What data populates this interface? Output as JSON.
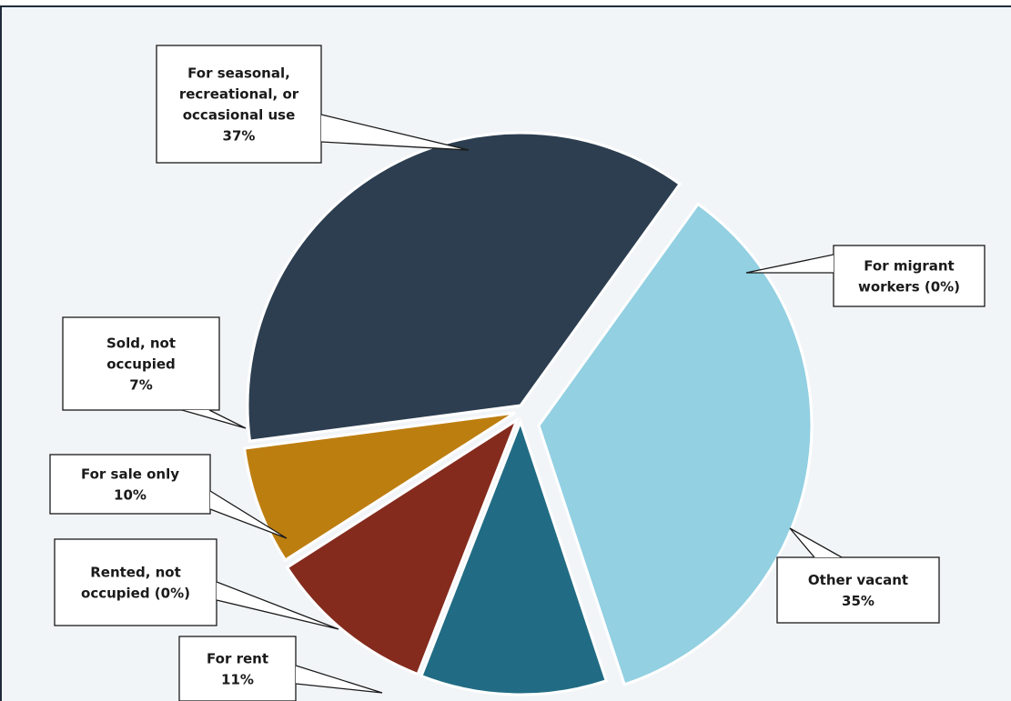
{
  "chart_data": {
    "type": "pie",
    "title": "",
    "slices": [
      {
        "label": "For seasonal, recreational, or occasional use",
        "value": 37,
        "text_lines": [
          "For seasonal,",
          "recreational, or",
          "occasional use",
          "37%"
        ],
        "color": "#2c3e50"
      },
      {
        "label": "For migrant workers",
        "value": 0,
        "text_lines": [
          "For migrant",
          "workers (0%)"
        ],
        "color": "#2c3e50"
      },
      {
        "label": "Other vacant",
        "value": 35,
        "text_lines": [
          "Other vacant",
          "35%"
        ],
        "color": "#92d0e2"
      },
      {
        "label": "For rent",
        "value": 11,
        "text_lines": [
          "For rent",
          "11%"
        ],
        "color": "#216c84"
      },
      {
        "label": "Rented, not occupied",
        "value": 0,
        "text_lines": [
          "Rented, not",
          "occupied (0%)"
        ],
        "color": "#216c84"
      },
      {
        "label": "For sale only",
        "value": 10,
        "text_lines": [
          "For sale only",
          "10%"
        ],
        "color": "#842b1e"
      },
      {
        "label": "Sold, not occupied",
        "value": 7,
        "text_lines": [
          "Sold, not",
          "occupied",
          "7%"
        ],
        "color": "#bd7e10"
      }
    ]
  }
}
